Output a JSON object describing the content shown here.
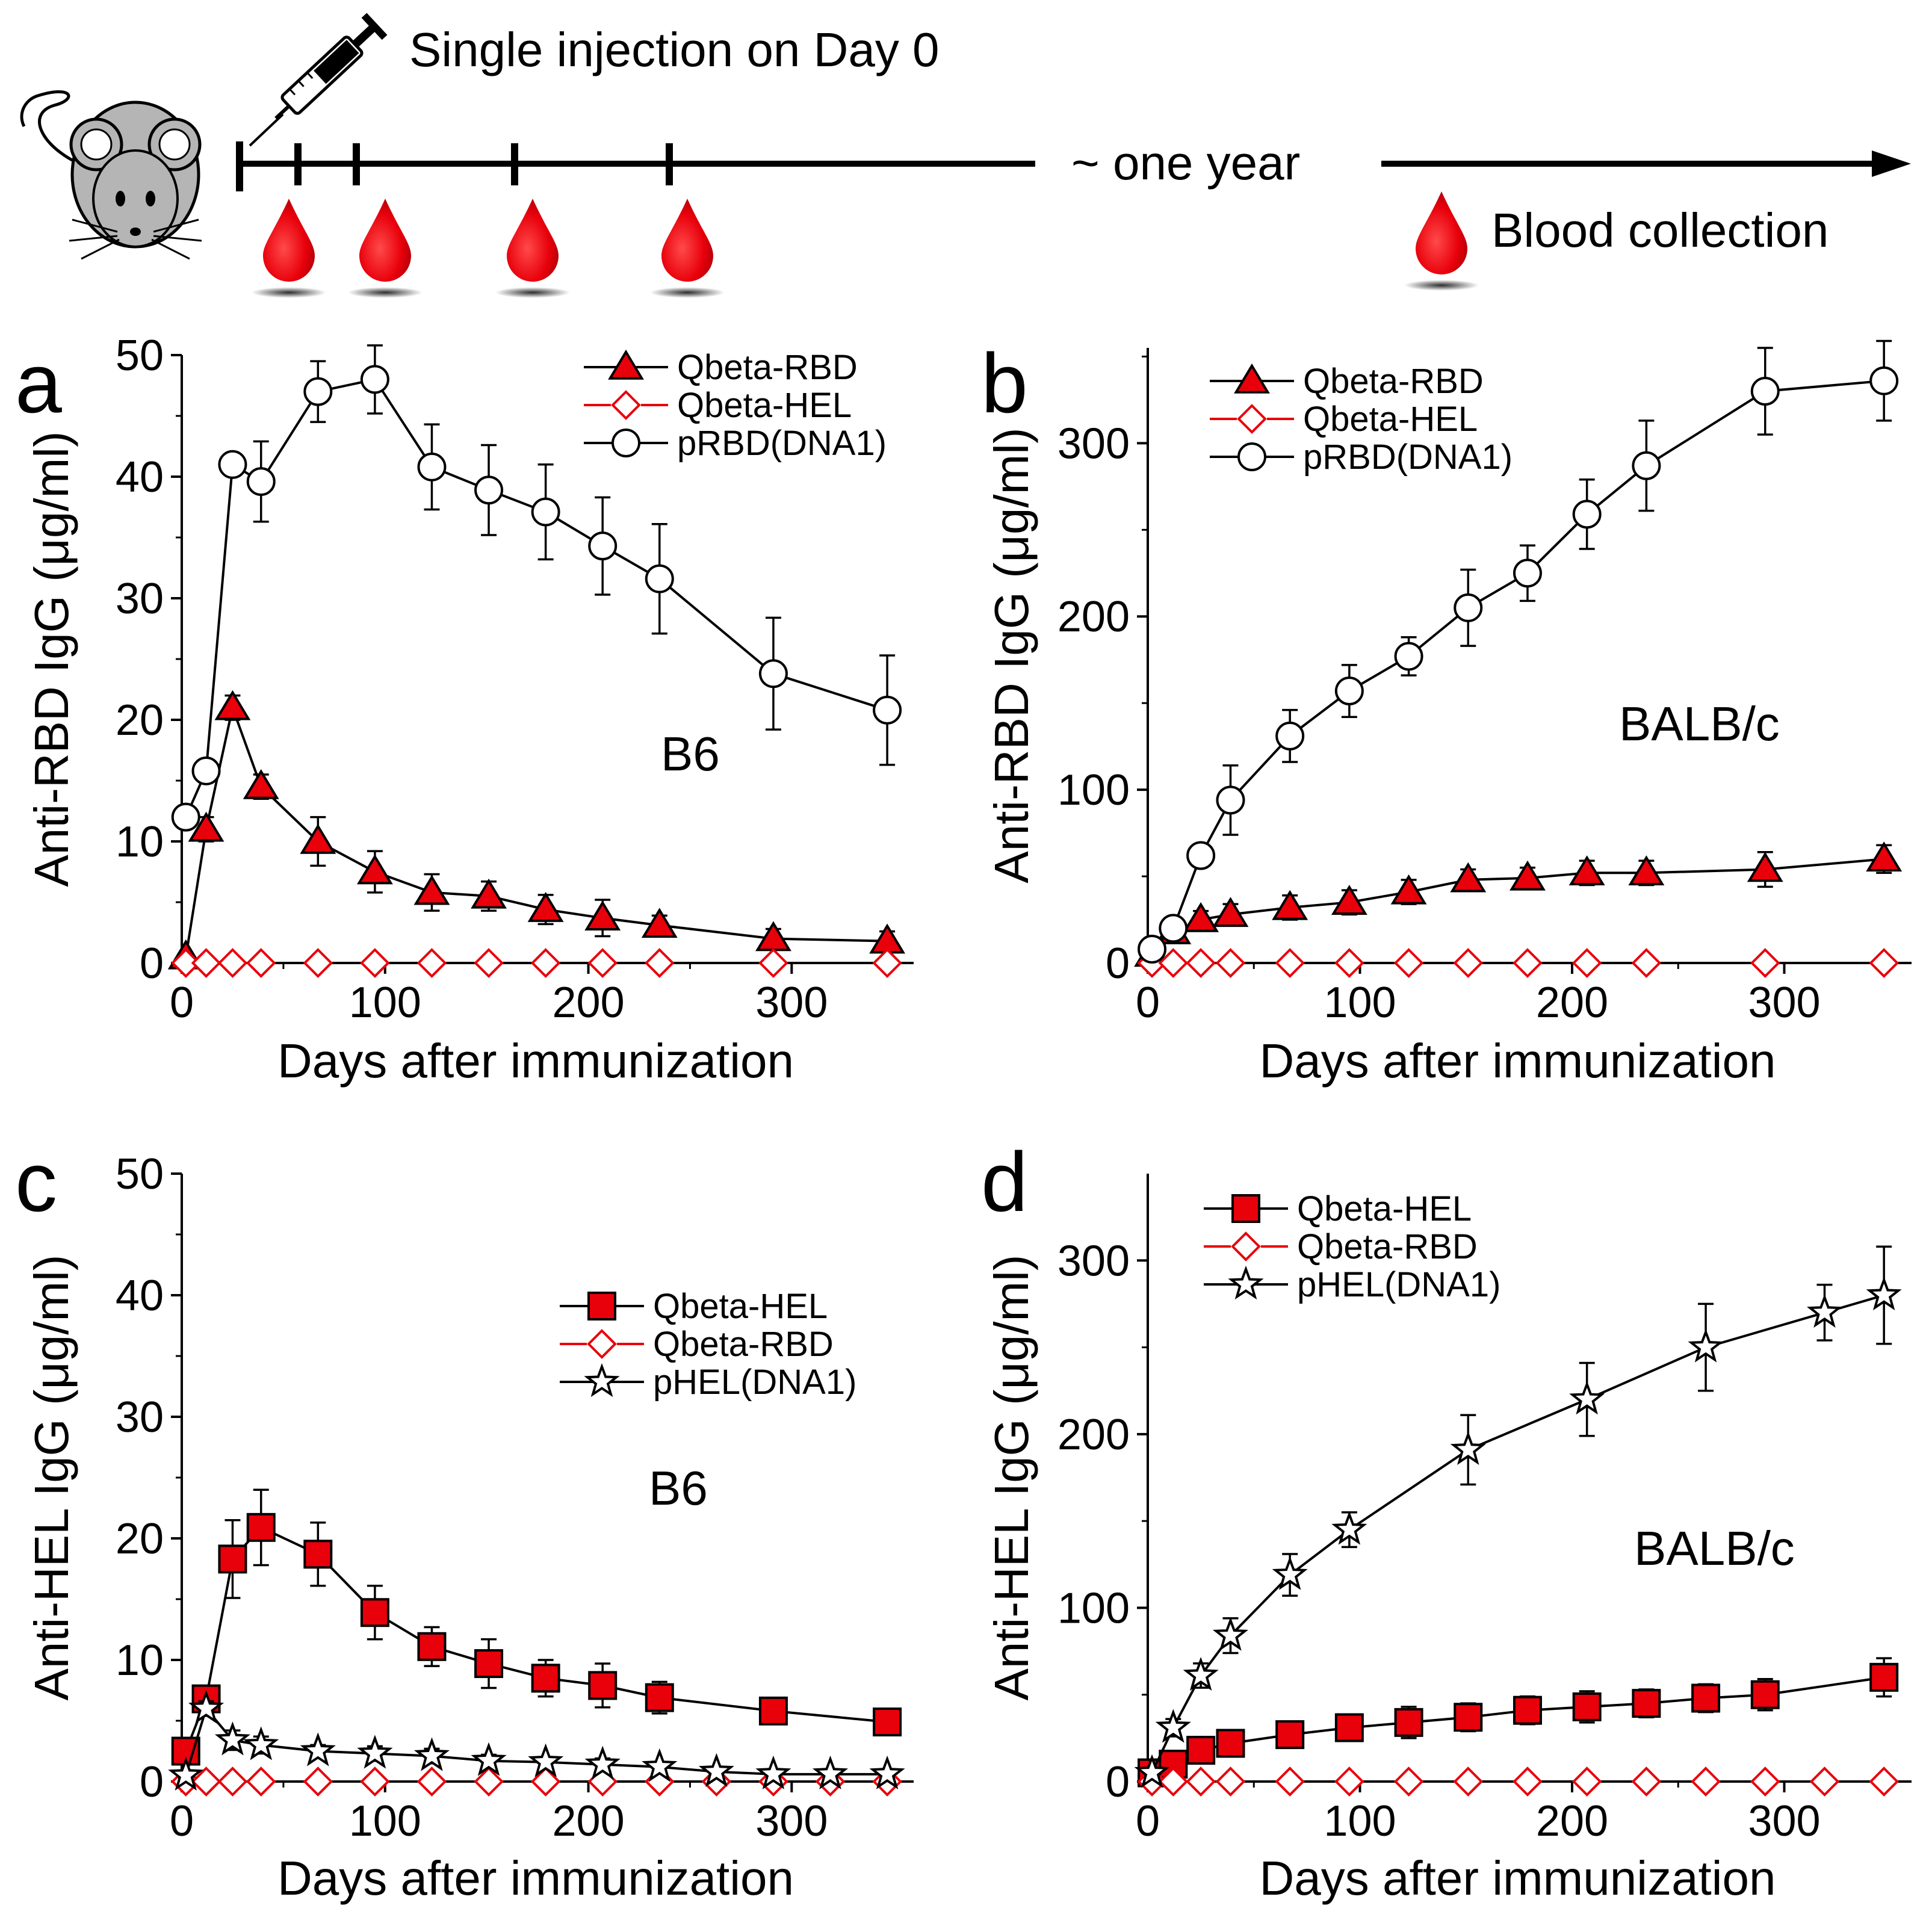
{
  "header": {
    "injection_label": "Single injection on Day 0",
    "timeline_label": "~ one year",
    "blood_label": "Blood collection"
  },
  "colors": {
    "red": "#e8000b",
    "black": "#000000",
    "white": "#ffffff",
    "mouse": "#b5b5b5"
  },
  "chart_data": [
    {
      "panel_letter": "a",
      "type": "line",
      "strain": "B6",
      "xlabel": "Days after immunization",
      "ylabel": "Anti-RBD IgG (μg/ml)",
      "xlim": [
        0,
        360
      ],
      "xticks": [
        0,
        100,
        200,
        300
      ],
      "ylim": [
        0,
        50
      ],
      "yticks": [
        0,
        10,
        20,
        30,
        40,
        50
      ],
      "legend_position": "top-right",
      "series": [
        {
          "name": "Qbeta-RBD",
          "marker": "triangle-filled",
          "x": [
            2,
            12,
            25,
            39,
            67,
            95,
            123,
            151,
            179,
            207,
            235,
            291,
            347
          ],
          "y": [
            0.5,
            11,
            21,
            14.5,
            10,
            7.5,
            5.8,
            5.5,
            4.4,
            3.7,
            3.1,
            2.0,
            1.8
          ],
          "err": [
            0.3,
            1,
            1,
            1,
            2,
            1.7,
            1.5,
            1.2,
            1.2,
            1.5,
            0.8,
            0.8,
            0.8
          ]
        },
        {
          "name": "Qbeta-HEL",
          "marker": "diamond-open-red",
          "x": [
            2,
            12,
            25,
            39,
            67,
            95,
            123,
            151,
            179,
            207,
            235,
            291,
            347
          ],
          "y": [
            0,
            0,
            0,
            0,
            0,
            0,
            0,
            0,
            0,
            0,
            0,
            0,
            0
          ],
          "err": [
            0,
            0,
            0,
            0,
            0,
            0,
            0,
            0,
            0,
            0,
            0,
            0,
            0
          ]
        },
        {
          "name": "pRBD(DNA1)",
          "marker": "circle-open",
          "x": [
            2,
            12,
            25,
            39,
            67,
            95,
            123,
            151,
            179,
            207,
            235,
            291,
            347
          ],
          "y": [
            12,
            15.8,
            41,
            39.6,
            47,
            48,
            40.8,
            38.9,
            37.1,
            34.3,
            31.6,
            23.8,
            20.8
          ],
          "err": [
            0.5,
            0.8,
            0.8,
            3.3,
            2.5,
            2.8,
            3.5,
            3.7,
            3.9,
            4.0,
            4.5,
            4.6,
            4.5
          ]
        }
      ]
    },
    {
      "panel_letter": "b",
      "type": "line",
      "strain": "BALB/c",
      "xlabel": "Days after immunization",
      "ylabel": "Anti-RBD IgG (μg/ml)",
      "xlim": [
        0,
        360
      ],
      "xticks": [
        0,
        100,
        200,
        300
      ],
      "ylim": [
        0,
        355
      ],
      "yticks": [
        0,
        100,
        200,
        300
      ],
      "legend_position": "top-left",
      "series": [
        {
          "name": "Qbeta-RBD",
          "marker": "triangle-filled",
          "x": [
            2,
            12,
            25,
            39,
            67,
            95,
            123,
            151,
            179,
            207,
            235,
            291,
            347
          ],
          "y": [
            5,
            18,
            25,
            28,
            32,
            35,
            41,
            48,
            49,
            52,
            52,
            54,
            60
          ],
          "err": [
            2,
            4,
            5,
            6,
            7,
            7,
            7,
            6,
            6,
            7,
            7,
            10,
            8
          ]
        },
        {
          "name": "Qbeta-HEL",
          "marker": "diamond-open-red",
          "x": [
            2,
            12,
            25,
            39,
            67,
            95,
            123,
            151,
            179,
            207,
            235,
            291,
            347
          ],
          "y": [
            0,
            0,
            0,
            0,
            0,
            0,
            0,
            0,
            0,
            0,
            0,
            0,
            0
          ],
          "err": [
            0,
            0,
            0,
            0,
            0,
            0,
            0,
            0,
            0,
            0,
            0,
            0,
            0
          ]
        },
        {
          "name": "pRBD(DNA1)",
          "marker": "circle-open",
          "x": [
            2,
            12,
            25,
            39,
            67,
            95,
            123,
            151,
            179,
            207,
            235,
            291,
            347
          ],
          "y": [
            8,
            20,
            62,
            94,
            131,
            157,
            177,
            205,
            225,
            259,
            287,
            330,
            336
          ],
          "err": [
            2,
            4,
            5,
            20,
            15,
            15,
            11,
            22,
            16,
            20,
            26,
            25,
            23
          ]
        }
      ]
    },
    {
      "panel_letter": "c",
      "type": "line",
      "strain": "B6",
      "xlabel": "Days after immunization",
      "ylabel": "Anti-HEL IgG (μg/ml)",
      "xlim": [
        0,
        360
      ],
      "xticks": [
        0,
        100,
        200,
        300
      ],
      "ylim": [
        0,
        50
      ],
      "yticks": [
        0,
        10,
        20,
        30,
        40,
        50
      ],
      "legend_position": "center-right",
      "series": [
        {
          "name": "Qbeta-HEL",
          "marker": "square-filled",
          "x": [
            2,
            12,
            25,
            39,
            67,
            95,
            123,
            151,
            179,
            207,
            235,
            291,
            347
          ],
          "y": [
            2.5,
            6.8,
            18.3,
            20.9,
            18.7,
            13.9,
            11.1,
            9.7,
            8.5,
            7.9,
            6.9,
            5.8,
            4.9
          ],
          "err": [
            1,
            1,
            3.2,
            3.1,
            2.6,
            2.2,
            1.6,
            2.0,
            1.5,
            1.8,
            1.3,
            0.8,
            0.9
          ]
        },
        {
          "name": "Qbeta-RBD",
          "marker": "diamond-open-red",
          "x": [
            2,
            12,
            25,
            39,
            67,
            95,
            123,
            151,
            179,
            207,
            235,
            263,
            291,
            319,
            347
          ],
          "y": [
            0,
            0,
            0,
            0,
            0,
            0,
            0,
            0,
            0,
            0,
            0,
            0,
            0,
            0,
            0
          ],
          "err": [
            0,
            0,
            0,
            0,
            0,
            0,
            0,
            0,
            0,
            0,
            0,
            0,
            0,
            0,
            0
          ]
        },
        {
          "name": "pHEL(DNA1)",
          "marker": "star-open",
          "x": [
            2,
            12,
            25,
            39,
            67,
            95,
            123,
            151,
            179,
            207,
            235,
            263,
            291,
            319,
            347
          ],
          "y": [
            0.5,
            6.0,
            3.4,
            3.0,
            2.5,
            2.3,
            2.1,
            1.7,
            1.6,
            1.4,
            1.2,
            0.8,
            0.6,
            0.6,
            0.6
          ],
          "err": [
            0.2,
            0.6,
            0.8,
            0.7,
            0.5,
            0.6,
            0.6,
            0.5,
            0.4,
            0.5,
            0.4,
            0.3,
            0.3,
            0.3,
            0.3
          ]
        }
      ]
    },
    {
      "panel_letter": "d",
      "type": "line",
      "strain": "BALB/c",
      "xlabel": "Days after immunization",
      "ylabel": "Anti-HEL IgG (μg/ml)",
      "xlim": [
        0,
        360
      ],
      "xticks": [
        0,
        100,
        200,
        300
      ],
      "ylim": [
        0,
        350
      ],
      "yticks": [
        0,
        100,
        200,
        300
      ],
      "legend_position": "top-left",
      "series": [
        {
          "name": "Qbeta-HEL",
          "marker": "square-filled",
          "x": [
            2,
            12,
            25,
            39,
            67,
            95,
            123,
            151,
            179,
            207,
            235,
            263,
            291,
            347
          ],
          "y": [
            5,
            10,
            18,
            22,
            27,
            31,
            34,
            37,
            41,
            43,
            45,
            48,
            50,
            60
          ],
          "err": [
            2,
            5,
            7,
            6,
            6,
            7,
            9,
            8,
            8,
            9,
            8,
            8,
            9,
            11
          ]
        },
        {
          "name": "Qbeta-RBD",
          "marker": "diamond-open-red",
          "x": [
            2,
            12,
            25,
            39,
            67,
            95,
            123,
            151,
            179,
            207,
            235,
            263,
            291,
            319,
            347
          ],
          "y": [
            0,
            0,
            0,
            0,
            0,
            0,
            0,
            0,
            0,
            0,
            0,
            0,
            0,
            0,
            0
          ],
          "err": [
            0,
            0,
            0,
            0,
            0,
            0,
            0,
            0,
            0,
            0,
            0,
            0,
            0,
            0,
            0
          ]
        },
        {
          "name": "pHEL(DNA1)",
          "marker": "star-open",
          "x": [
            2,
            12,
            25,
            39,
            67,
            95,
            151,
            207,
            263,
            319,
            347
          ],
          "y": [
            5,
            31,
            61,
            84,
            119,
            145,
            191,
            220,
            250,
            270,
            280
          ],
          "err": [
            2,
            5,
            7,
            10,
            12,
            10,
            20,
            21,
            25,
            16,
            28
          ]
        }
      ]
    }
  ]
}
